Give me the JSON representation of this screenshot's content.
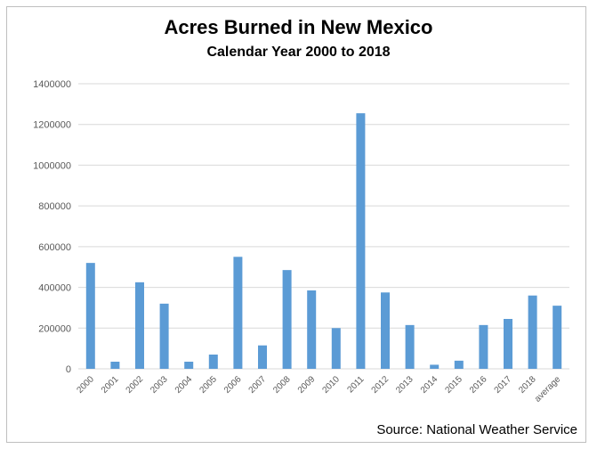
{
  "chart_data": {
    "type": "bar",
    "title": "Acres Burned in New Mexico",
    "subtitle": "Calendar Year 2000 to 2018",
    "source": "Source: National Weather Service",
    "xlabel": "",
    "ylabel": "",
    "ylim": [
      0,
      1400000
    ],
    "yticks": [
      "0",
      "200000",
      "400000",
      "600000",
      "800000",
      "1000000",
      "1200000",
      "1400000"
    ],
    "ytick_values": [
      0,
      200000,
      400000,
      600000,
      800000,
      1000000,
      1200000,
      1400000
    ],
    "categories": [
      "2000",
      "2001",
      "2002",
      "2003",
      "2004",
      "2005",
      "2006",
      "2007",
      "2008",
      "2009",
      "2010",
      "2011",
      "2012",
      "2013",
      "2014",
      "2015",
      "2016",
      "2017",
      "2018",
      "average"
    ],
    "values": [
      520000,
      35000,
      425000,
      320000,
      35000,
      70000,
      550000,
      115000,
      485000,
      385000,
      200000,
      1255000,
      375000,
      215000,
      20000,
      40000,
      215000,
      245000,
      360000,
      310000
    ],
    "bar_color": "#5b9bd5",
    "grid": true,
    "legend": "none"
  }
}
